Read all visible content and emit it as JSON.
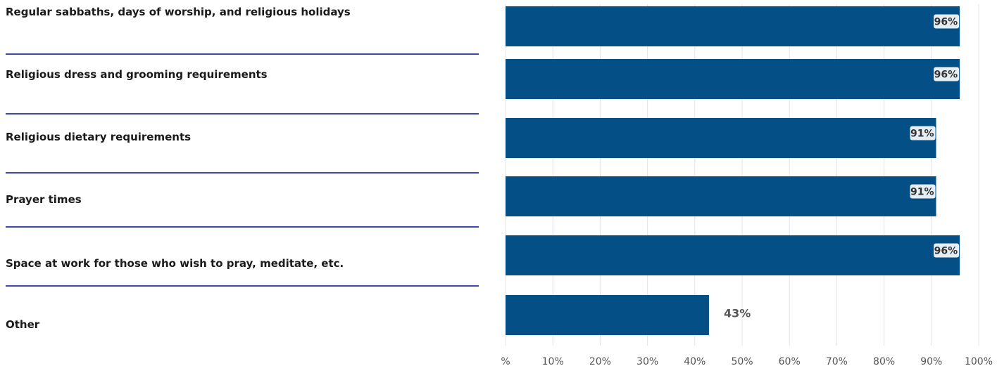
{
  "colors": {
    "bar": "#034f86",
    "separator": "#3c4aa0",
    "gridline": "#e2e4e8",
    "tick_text": "#555555",
    "outside_label": "#555555"
  },
  "chart_data": {
    "type": "bar",
    "orientation": "horizontal",
    "categories": [
      "Regular sabbaths, days of worship, and religious holidays",
      "Religious dress and grooming requirements",
      "Religious dietary requirements",
      "Prayer times",
      "Space at work for those who wish to pray, meditate, etc.",
      "Other"
    ],
    "values": [
      96,
      96,
      91,
      91,
      96,
      43
    ],
    "data_labels": [
      "96%",
      "96%",
      "91%",
      "91%",
      "96%",
      "43%"
    ],
    "xlim": [
      0,
      100
    ],
    "x_ticks": [
      "%",
      "10%",
      "20%",
      "30%",
      "40%",
      "50%",
      "60%",
      "70%",
      "80%",
      "90%",
      "100%"
    ],
    "grid": true,
    "title": "",
    "xlabel": "",
    "ylabel": ""
  }
}
